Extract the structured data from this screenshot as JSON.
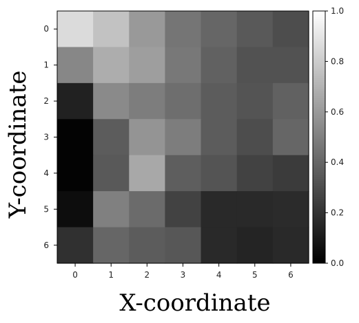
{
  "chart_data": {
    "type": "heatmap",
    "title": "",
    "xlabel": "X-coordinate",
    "ylabel": "Y-coordinate",
    "x_categories": [
      "0",
      "1",
      "2",
      "3",
      "4",
      "5",
      "6"
    ],
    "y_categories": [
      "0",
      "1",
      "2",
      "3",
      "4",
      "5",
      "6"
    ],
    "y_order": "top-to-bottom",
    "colormap": "gray",
    "colorbar": {
      "range": [
        0.0,
        1.0
      ],
      "ticks": [
        "0.0",
        "0.2",
        "0.4",
        "0.6",
        "0.8",
        "1.0"
      ]
    },
    "values": [
      [
        0.86,
        0.76,
        0.6,
        0.46,
        0.4,
        0.35,
        0.3
      ],
      [
        0.53,
        0.68,
        0.62,
        0.47,
        0.38,
        0.32,
        0.32
      ],
      [
        0.13,
        0.54,
        0.49,
        0.43,
        0.36,
        0.33,
        0.38
      ],
      [
        0.01,
        0.36,
        0.58,
        0.49,
        0.36,
        0.3,
        0.4
      ],
      [
        0.01,
        0.35,
        0.66,
        0.37,
        0.33,
        0.26,
        0.23
      ],
      [
        0.05,
        0.5,
        0.42,
        0.26,
        0.16,
        0.16,
        0.17
      ],
      [
        0.19,
        0.4,
        0.36,
        0.34,
        0.16,
        0.14,
        0.16
      ]
    ]
  }
}
